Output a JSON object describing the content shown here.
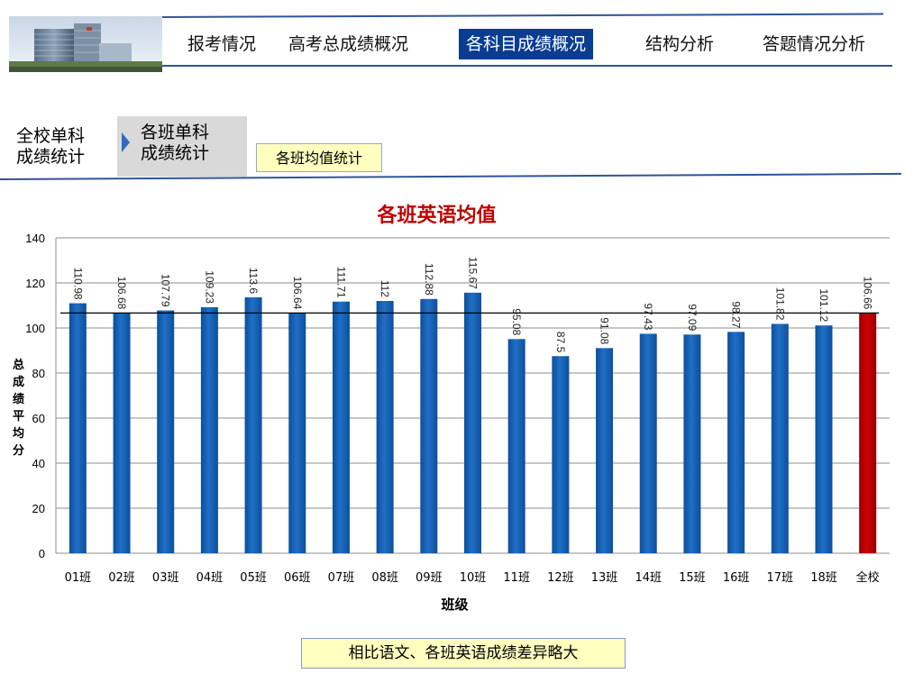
{
  "nav": {
    "items": [
      {
        "label": "报考情况"
      },
      {
        "label": "高考总成绩概况"
      },
      {
        "label": "各科目成绩概况"
      },
      {
        "label": "结构分析"
      },
      {
        "label": "答题情况分析"
      }
    ],
    "active_color": "#0a3d91"
  },
  "side": {
    "school_label_line1": "全校单科",
    "school_label_line2": "成绩统计",
    "class_label_line1": "各班单科",
    "class_label_line2": "成绩统计",
    "stat_button": "各班均值统计"
  },
  "chart_data": {
    "type": "bar",
    "title": "各班英语均值",
    "xlabel": "班级",
    "ylabel": "总成绩平均分",
    "categories": [
      "01班",
      "02班",
      "03班",
      "04班",
      "05班",
      "06班",
      "07班",
      "08班",
      "09班",
      "10班",
      "11班",
      "12班",
      "13班",
      "14班",
      "15班",
      "16班",
      "17班",
      "18班",
      "全校"
    ],
    "values": [
      110.98,
      106.68,
      107.79,
      109.23,
      113.6,
      106.64,
      111.71,
      112,
      112.88,
      115.67,
      95.08,
      87.5,
      91.08,
      97.43,
      97.09,
      98.27,
      101.82,
      101.12,
      106.66
    ],
    "value_labels": [
      "110.98",
      "106.68",
      "107.79",
      "109.23",
      "113.6",
      "106.64",
      "111.71",
      "112",
      "112.88",
      "115.67",
      "95.08",
      "87.5",
      "91.08",
      "97.43",
      "97.09",
      "98.27",
      "101.82",
      "101.12",
      "106.66"
    ],
    "reference_line": 106.66,
    "ylim": [
      0,
      140
    ],
    "yticks": [
      "0",
      "20",
      "40",
      "60",
      "80",
      "100",
      "120",
      "140"
    ],
    "grid": true,
    "bar_color": "#1f6fc5",
    "highlight_color": "#cc0000",
    "highlight_category": "全校",
    "title_color": "#c00000"
  },
  "footer_note": "相比语文、各班英语成绩差异略大"
}
